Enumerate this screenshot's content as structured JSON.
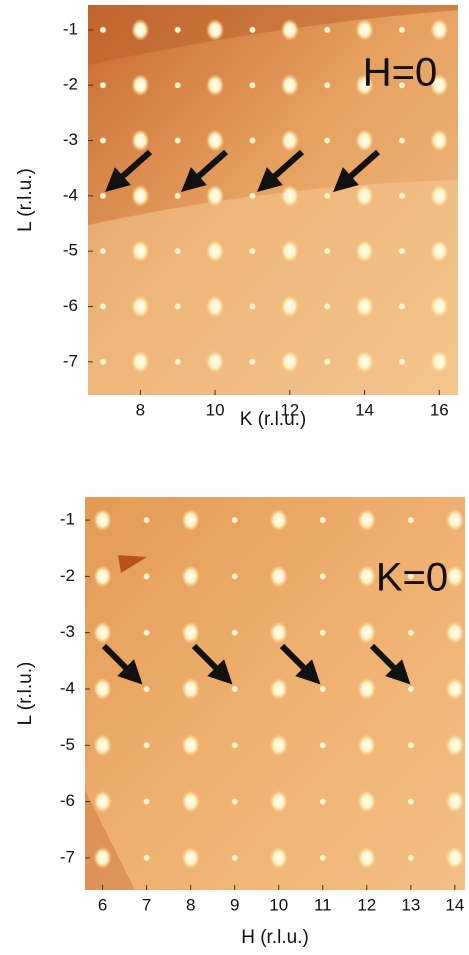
{
  "chart_data": [
    {
      "type": "image",
      "xlabel": "K (r.l.u.)",
      "ylabel": "L (r.l.u.)",
      "annotation": "H=0",
      "xlim": [
        6.6,
        16.5
      ],
      "ylim": [
        -7.6,
        -0.55
      ],
      "xticks": [
        8,
        10,
        12,
        14,
        16
      ],
      "yticks": [
        -1,
        -2,
        -3,
        -4,
        -5,
        -6,
        -7
      ]
    },
    {
      "type": "image",
      "xlabel": "H (r.l.u.)",
      "ylabel": "L (r.l.u.)",
      "annotation": "K=0",
      "xlim": [
        5.6,
        14.23
      ],
      "ylim": [
        -7.57,
        -0.59
      ],
      "xticks": [
        6,
        7,
        8,
        9,
        10,
        11,
        12,
        13,
        14
      ],
      "yticks": [
        -1,
        -2,
        -3,
        -4,
        -5,
        -6,
        -7
      ]
    }
  ]
}
